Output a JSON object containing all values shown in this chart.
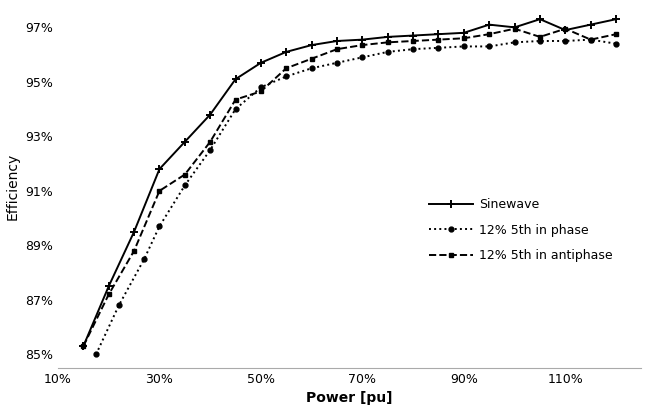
{
  "title": "",
  "xlabel": "Power [pu]",
  "ylabel": "Efficiency",
  "background_color": "#ffffff",
  "xlim": [
    0.1,
    1.25
  ],
  "ylim": [
    84.5,
    97.8
  ],
  "yticks": [
    85,
    87,
    89,
    91,
    93,
    95,
    97
  ],
  "xticks": [
    0.1,
    0.3,
    0.5,
    0.7,
    0.9,
    1.1
  ],
  "xtick_labels": [
    "10%",
    "30%",
    "50%",
    "70%",
    "90%",
    "110%"
  ],
  "ytick_labels": [
    "85%",
    "87%",
    "89%",
    "91%",
    "93%",
    "95%",
    "97%"
  ],
  "sinewave_x": [
    0.15,
    0.2,
    0.25,
    0.3,
    0.35,
    0.4,
    0.45,
    0.5,
    0.55,
    0.6,
    0.65,
    0.7,
    0.75,
    0.8,
    0.85,
    0.9,
    0.95,
    1.0,
    1.05,
    1.1,
    1.15,
    1.2
  ],
  "sinewave_y": [
    85.3,
    87.5,
    89.5,
    91.8,
    92.8,
    93.8,
    95.1,
    95.7,
    96.1,
    96.35,
    96.5,
    96.55,
    96.65,
    96.7,
    96.75,
    96.8,
    97.1,
    97.0,
    97.3,
    96.9,
    97.1,
    97.3
  ],
  "in_phase_x": [
    0.175,
    0.22,
    0.27,
    0.3,
    0.35,
    0.4,
    0.45,
    0.5,
    0.55,
    0.6,
    0.65,
    0.7,
    0.75,
    0.8,
    0.85,
    0.9,
    0.95,
    1.0,
    1.05,
    1.1,
    1.15,
    1.2
  ],
  "in_phase_y": [
    85.0,
    86.8,
    88.5,
    89.7,
    91.2,
    92.5,
    94.0,
    94.8,
    95.2,
    95.5,
    95.7,
    95.9,
    96.1,
    96.2,
    96.25,
    96.3,
    96.3,
    96.45,
    96.5,
    96.5,
    96.55,
    96.4
  ],
  "antiphase_x": [
    0.15,
    0.2,
    0.25,
    0.3,
    0.35,
    0.4,
    0.45,
    0.5,
    0.55,
    0.6,
    0.65,
    0.7,
    0.75,
    0.8,
    0.85,
    0.9,
    0.95,
    1.0,
    1.05,
    1.1,
    1.15,
    1.2
  ],
  "antiphase_y": [
    85.3,
    87.2,
    88.8,
    91.0,
    91.6,
    92.8,
    94.35,
    94.65,
    95.5,
    95.85,
    96.2,
    96.35,
    96.45,
    96.5,
    96.55,
    96.6,
    96.75,
    96.95,
    96.65,
    96.95,
    96.55,
    96.75
  ],
  "line_color": "#000000",
  "legend_labels": [
    "Sinewave",
    "12% 5th in phase",
    "12% 5th in antiphase"
  ]
}
